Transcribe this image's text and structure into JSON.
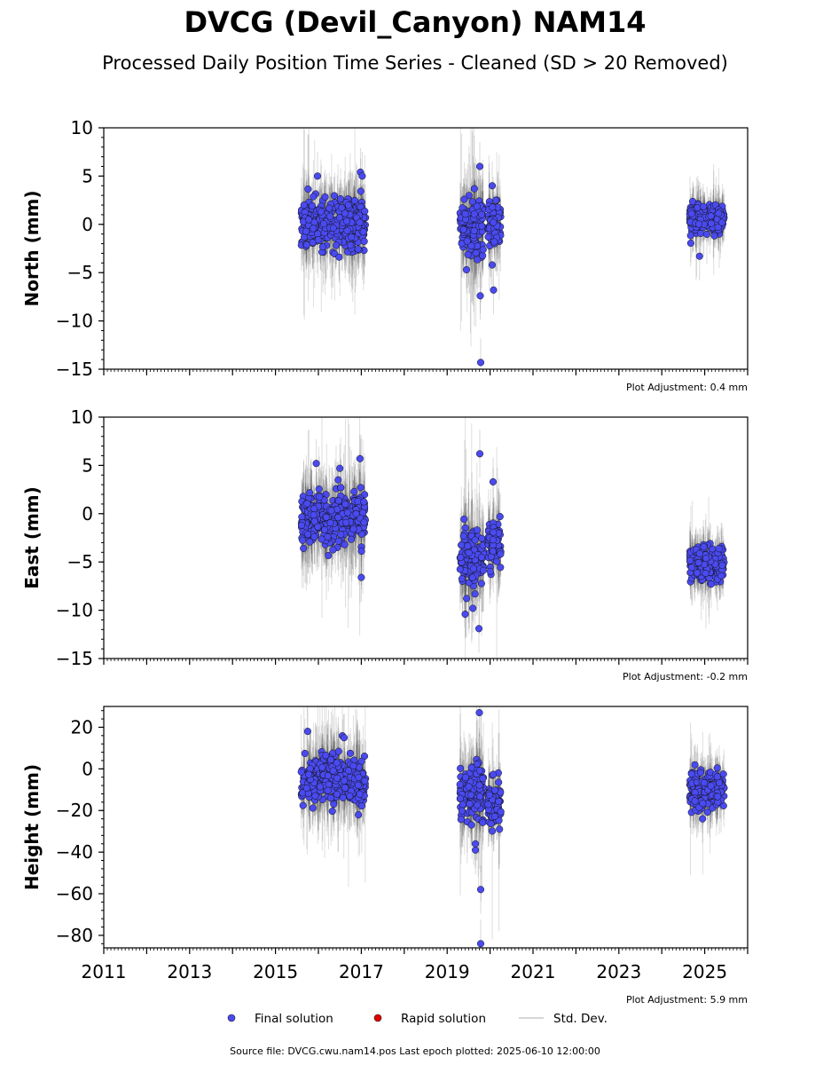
{
  "title": "DVCG (Devil_Canyon) NAM14",
  "subtitle": "Processed Daily Position Time Series - Cleaned (SD > 20 Removed)",
  "legend": {
    "final": "Final solution",
    "rapid": "Rapid solution",
    "std": "Std. Dev."
  },
  "footer": "Source file: DVCG.cwu.nam14.pos  Last epoch plotted: 2025-06-10 12:00:00",
  "colors": {
    "final": "#4a4af0",
    "rapid": "#e00000",
    "std": "#aaaaaa"
  },
  "chart_data": [
    {
      "type": "scatter",
      "ylabel": "North (mm)",
      "adjustment": "Plot Adjustment: 0.4 mm",
      "xlim": [
        2011,
        2026
      ],
      "ylim": [
        -15,
        10
      ],
      "yticks": [
        10,
        5,
        0,
        -5,
        -10,
        -15
      ],
      "xticks": [
        2011,
        2013,
        2015,
        2017,
        2019,
        2021,
        2023,
        2025
      ],
      "show_xtick_labels": false,
      "segments": [
        {
          "start": 2015.6,
          "end": 2017.1,
          "mean": 0.0,
          "sd": 1.4
        },
        {
          "start": 2019.3,
          "end": 2019.85,
          "mean": -0.2,
          "sd": 1.8
        },
        {
          "start": 2019.95,
          "end": 2020.25,
          "mean": 0.0,
          "sd": 1.3
        },
        {
          "start": 2024.65,
          "end": 2025.45,
          "mean": 0.6,
          "sd": 0.9
        }
      ],
      "outliers": [
        [
          2015.98,
          5.0
        ],
        [
          2016.98,
          5.4
        ],
        [
          2017.02,
          5.0
        ],
        [
          2019.76,
          6.0
        ],
        [
          2019.78,
          -14.3
        ],
        [
          2019.77,
          -7.4
        ],
        [
          2020.05,
          4.0
        ],
        [
          2020.08,
          -6.8
        ],
        [
          2024.88,
          -3.3
        ],
        [
          2020.05,
          -4.2
        ],
        [
          2019.45,
          -4.7
        ]
      ]
    },
    {
      "type": "scatter",
      "ylabel": "East (mm)",
      "adjustment": "Plot Adjustment: -0.2 mm",
      "xlim": [
        2011,
        2026
      ],
      "ylim": [
        -15,
        10
      ],
      "yticks": [
        10,
        5,
        0,
        -5,
        -10,
        -15
      ],
      "xticks": [
        2011,
        2013,
        2015,
        2017,
        2019,
        2021,
        2023,
        2025
      ],
      "show_xtick_labels": false,
      "segments": [
        {
          "start": 2015.6,
          "end": 2017.1,
          "mean": -0.5,
          "sd": 1.5
        },
        {
          "start": 2019.3,
          "end": 2019.85,
          "mean": -4.5,
          "sd": 1.9
        },
        {
          "start": 2019.95,
          "end": 2020.25,
          "mean": -3.2,
          "sd": 1.3
        },
        {
          "start": 2024.65,
          "end": 2025.45,
          "mean": -5.2,
          "sd": 1.0
        }
      ],
      "outliers": [
        [
          2015.95,
          5.2
        ],
        [
          2016.5,
          4.7
        ],
        [
          2016.97,
          5.7
        ],
        [
          2019.76,
          6.2
        ],
        [
          2019.42,
          -10.4
        ],
        [
          2019.74,
          -11.9
        ],
        [
          2020.07,
          3.3
        ],
        [
          2017.0,
          -6.6
        ],
        [
          2019.6,
          -9.8
        ]
      ]
    },
    {
      "type": "scatter",
      "ylabel": "Height (mm)",
      "adjustment": "Plot Adjustment: 5.9 mm",
      "xlim": [
        2011,
        2026
      ],
      "ylim": [
        -86,
        30
      ],
      "yticks": [
        20,
        0,
        -20,
        -40,
        -60,
        -80
      ],
      "xticks": [
        2011,
        2013,
        2015,
        2017,
        2019,
        2021,
        2023,
        2025
      ],
      "show_xtick_labels": true,
      "segments": [
        {
          "start": 2015.6,
          "end": 2017.1,
          "mean": -5.0,
          "sd": 6.5
        },
        {
          "start": 2019.3,
          "end": 2019.85,
          "mean": -12.0,
          "sd": 7.5
        },
        {
          "start": 2019.95,
          "end": 2020.25,
          "mean": -16.0,
          "sd": 6.0
        },
        {
          "start": 2024.65,
          "end": 2025.45,
          "mean": -10.0,
          "sd": 5.0
        }
      ],
      "outliers": [
        [
          2015.75,
          18.0
        ],
        [
          2019.75,
          27.0
        ],
        [
          2019.78,
          -58.0
        ],
        [
          2019.78,
          -84.0
        ],
        [
          2019.66,
          -39.0
        ],
        [
          2019.66,
          -36.0
        ],
        [
          2024.95,
          -24.0
        ],
        [
          2016.6,
          15.0
        ]
      ]
    }
  ]
}
